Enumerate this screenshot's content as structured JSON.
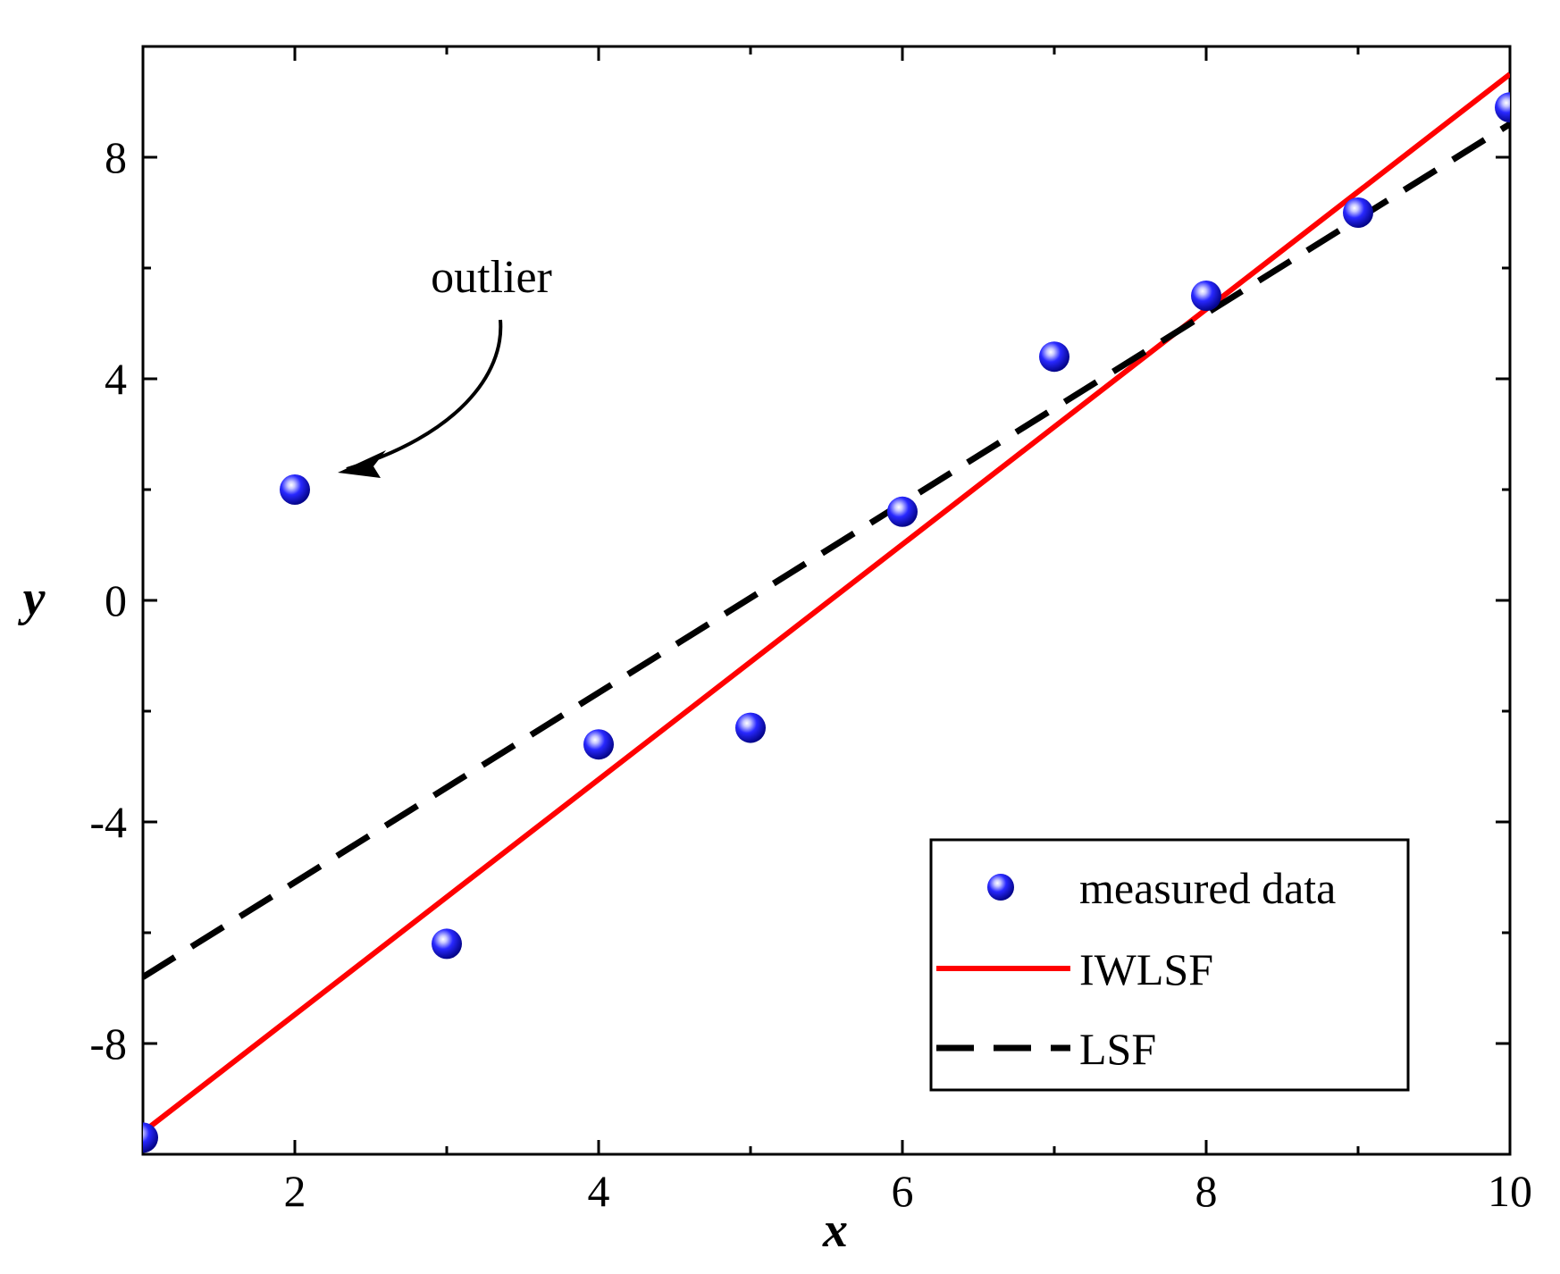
{
  "chart_data": {
    "type": "scatter",
    "xlabel": "x",
    "ylabel": "y",
    "xlim": [
      1,
      10
    ],
    "ylim": [
      -10,
      10
    ],
    "x_ticks": [
      2,
      4,
      6,
      8,
      10
    ],
    "x_tick_labels": [
      "2",
      "4",
      "6",
      "8",
      "10"
    ],
    "y_ticks": [
      -8,
      -4,
      0,
      4,
      8
    ],
    "y_tick_labels": [
      "-8",
      "-4",
      "0",
      "4",
      "8"
    ],
    "grid": false,
    "series": [
      {
        "name": "measured data",
        "kind": "markers",
        "color": "#1010e0",
        "x": [
          1,
          2,
          3,
          4,
          5,
          6,
          7,
          8,
          9,
          10
        ],
        "y": [
          -9.7,
          2.0,
          -6.2,
          -2.6,
          -2.3,
          1.6,
          4.4,
          5.5,
          7.0,
          8.9
        ]
      },
      {
        "name": "IWLSF",
        "kind": "line",
        "style": "solid",
        "color": "#ff0000",
        "x": [
          1,
          10
        ],
        "y": [
          -9.6,
          9.5
        ]
      },
      {
        "name": "LSF",
        "kind": "line",
        "style": "dashed",
        "color": "#000000",
        "x": [
          1,
          10
        ],
        "y": [
          -6.8,
          8.6
        ]
      }
    ],
    "legend": {
      "position": "bottom-right",
      "entries": [
        "measured data",
        "IWLSF",
        "LSF"
      ]
    },
    "annotation": {
      "text": "outlier",
      "points_to": {
        "x": 2,
        "y": 2.0
      }
    }
  }
}
